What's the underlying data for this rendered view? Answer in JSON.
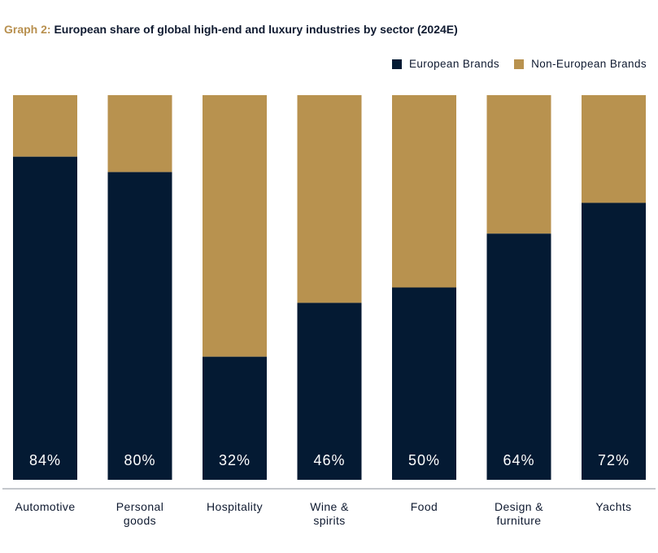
{
  "title": {
    "prefix": "Graph 2:",
    "text": "European share of global high-end and luxury industries by sector (2024E)"
  },
  "legend": [
    {
      "label": "European Brands",
      "color": "#041a33"
    },
    {
      "label": "Non-European Brands",
      "color": "#b8924f"
    }
  ],
  "chart_data": {
    "type": "bar",
    "stacked": true,
    "percent": true,
    "categories": [
      [
        "Automotive"
      ],
      [
        "Personal",
        "goods"
      ],
      [
        "Hospitality"
      ],
      [
        "Wine &",
        "spirits"
      ],
      [
        "Food"
      ],
      [
        "Design &",
        "furniture"
      ],
      [
        "Yachts"
      ]
    ],
    "series": [
      {
        "name": "European Brands",
        "values": [
          84,
          80,
          32,
          46,
          50,
          64,
          72
        ],
        "color": "#041a33"
      },
      {
        "name": "Non-European Brands",
        "values": [
          16,
          20,
          68,
          54,
          50,
          36,
          28
        ],
        "color": "#b8924f"
      }
    ],
    "data_labels": [
      "84%",
      "80%",
      "32%",
      "46%",
      "50%",
      "64%",
      "72%"
    ],
    "ylim": [
      0,
      100
    ],
    "grid": false,
    "legend_position": "top-right"
  }
}
